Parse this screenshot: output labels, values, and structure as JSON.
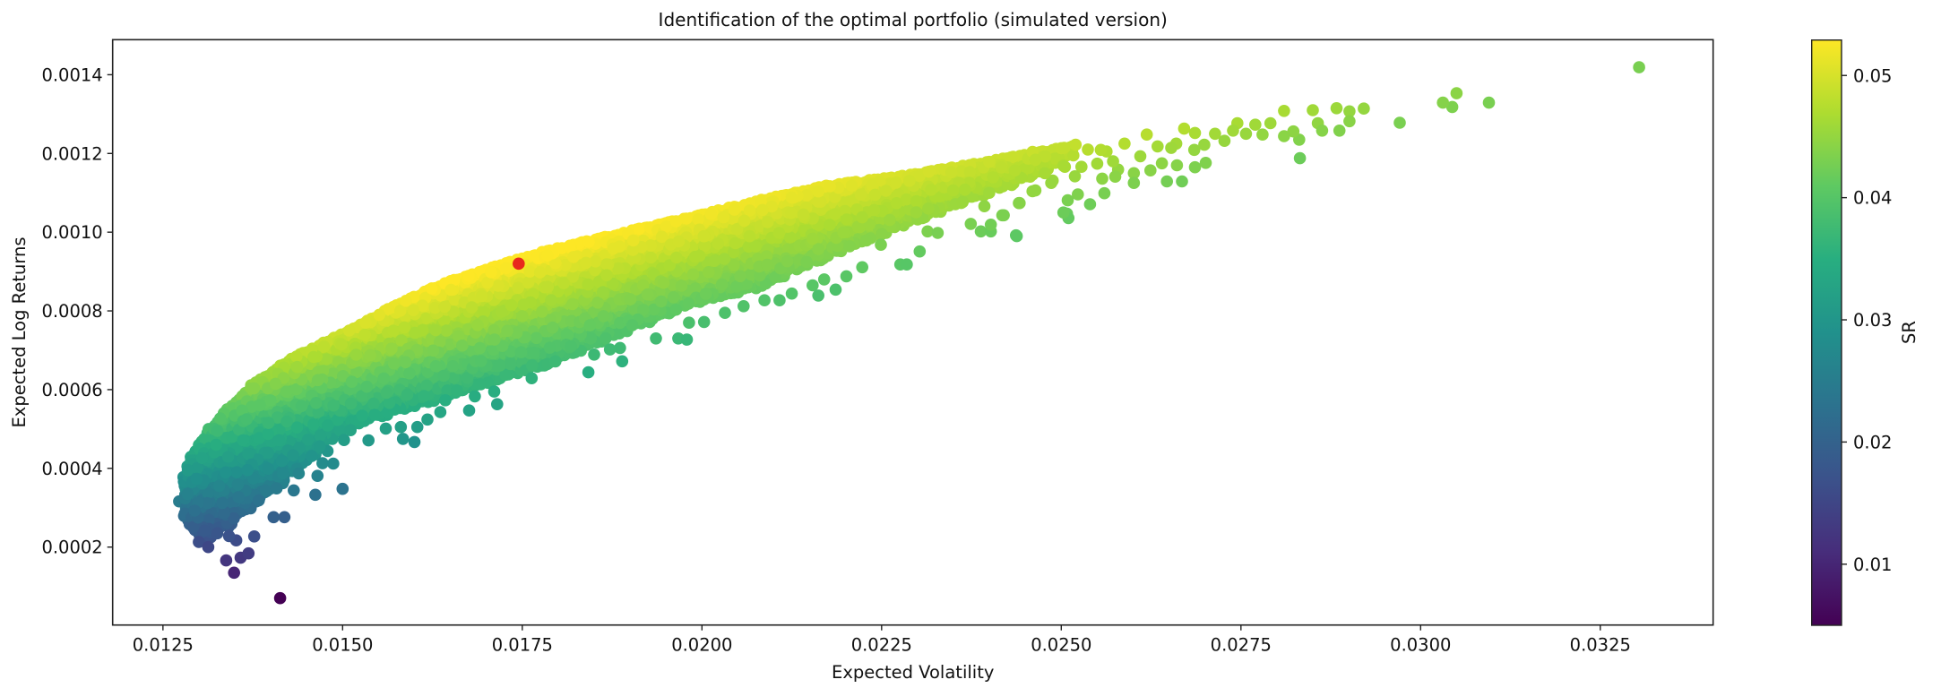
{
  "chart_data": {
    "type": "scatter",
    "title": "Identification of the optimal portfolio (simulated version)",
    "xlabel": "Expected Volatility",
    "ylabel": "Expected Log Returns",
    "xlim": [
      0.0118,
      0.03407
    ],
    "ylim": [
      2e-06,
      0.001489
    ],
    "xticks": [
      0.0125,
      0.015,
      0.0175,
      0.02,
      0.0225,
      0.025,
      0.0275,
      0.03,
      0.0325
    ],
    "xtick_labels": [
      "0.0125",
      "0.0150",
      "0.0175",
      "0.0200",
      "0.0225",
      "0.0250",
      "0.0275",
      "0.0300",
      "0.0325"
    ],
    "yticks": [
      0.0002,
      0.0004,
      0.0006,
      0.0008,
      0.001,
      0.0012,
      0.0014
    ],
    "ytick_labels": [
      "0.0002",
      "0.0004",
      "0.0006",
      "0.0008",
      "0.0010",
      "0.0012",
      "0.0014"
    ],
    "grid": false,
    "color_by": "SR",
    "colormap": "viridis",
    "colorbar": {
      "label": "SR",
      "range": [
        0.005,
        0.0529
      ],
      "ticks": [
        0.01,
        0.02,
        0.03,
        0.04,
        0.05
      ],
      "tick_labels": [
        "0.01",
        "0.02",
        "0.03",
        "0.04",
        "0.05"
      ]
    },
    "dense_cloud": {
      "vol": [
        0.01275,
        0.0128,
        0.0129,
        0.0131,
        0.0134,
        0.0138,
        0.0144,
        0.015,
        0.0157,
        0.0164,
        0.0171,
        0.0178,
        0.0187,
        0.0199,
        0.0208,
        0.0218,
        0.0227,
        0.0237,
        0.0246,
        0.0252
      ],
      "upper": [
        0.00032,
        0.00038,
        0.00043,
        0.00049,
        0.00055,
        0.00062,
        0.00069,
        0.00074,
        0.00081,
        0.00087,
        0.00091,
        0.00095,
        0.00099,
        0.00104,
        0.00108,
        0.00112,
        0.00114,
        0.00117,
        0.0012,
        0.00122
      ],
      "lower": [
        0.00031,
        0.00027,
        0.00024,
        0.00022,
        0.00025,
        0.00031,
        0.0004,
        0.0005,
        0.00054,
        0.00058,
        0.00062,
        0.00066,
        0.00073,
        0.00082,
        0.00086,
        0.00094,
        0.00101,
        0.00108,
        0.00114,
        0.0012
      ]
    },
    "points": [
      [
        0.01413,
        7.03e-05
      ],
      [
        0.01349,
        0.000135
      ],
      [
        0.01338,
        0.000166
      ],
      [
        0.01358,
        0.000173
      ],
      [
        0.01369,
        0.000184
      ],
      [
        0.01377,
        0.000227
      ],
      [
        0.01352,
        0.000217
      ],
      [
        0.01342,
        0.000228
      ],
      [
        0.013,
        0.000213
      ],
      [
        0.01313,
        0.0002
      ],
      [
        0.01404,
        0.000276
      ],
      [
        0.01419,
        0.000276
      ],
      [
        0.01462,
        0.000333
      ],
      [
        0.015,
        0.000348
      ],
      [
        0.01432,
        0.000344
      ],
      [
        0.01408,
        0.000349
      ],
      [
        0.01417,
        0.000387
      ],
      [
        0.01439,
        0.000387
      ],
      [
        0.01465,
        0.000381
      ],
      [
        0.01472,
        0.000413
      ],
      [
        0.01487,
        0.000412
      ],
      [
        0.01479,
        0.000444
      ],
      [
        0.01468,
        0.000456
      ],
      [
        0.01502,
        0.000472
      ],
      [
        0.01536,
        0.000471
      ],
      [
        0.01584,
        0.000475
      ],
      [
        0.016,
        0.000467
      ],
      [
        0.01604,
        0.000505
      ],
      [
        0.01581,
        0.000505
      ],
      [
        0.0156,
        0.000501
      ],
      [
        0.01618,
        0.000524
      ],
      [
        0.01636,
        0.000543
      ],
      [
        0.01676,
        0.000547
      ],
      [
        0.01715,
        0.000563
      ],
      [
        0.01711,
        0.000595
      ],
      [
        0.01684,
        0.000583
      ],
      [
        0.01659,
        0.000598
      ],
      [
        0.01643,
        0.000573
      ],
      [
        0.01763,
        0.000629
      ],
      [
        0.01511,
        0.000497
      ],
      [
        0.01431,
        0.000433
      ],
      [
        0.01842,
        0.000644
      ],
      [
        0.01889,
        0.000672
      ],
      [
        0.01886,
        0.000706
      ],
      [
        0.0185,
        0.000689
      ],
      [
        0.01872,
        0.000702
      ],
      [
        0.01936,
        0.00073
      ],
      [
        0.01967,
        0.00073
      ],
      [
        0.01979,
        0.000727
      ],
      [
        0.01982,
        0.00077
      ],
      [
        0.02003,
        0.000772
      ],
      [
        0.02032,
        0.000795
      ],
      [
        0.02058,
        0.000812
      ],
      [
        0.02087,
        0.000827
      ],
      [
        0.02108,
        0.000827
      ],
      [
        0.02125,
        0.000844
      ],
      [
        0.02154,
        0.000865
      ],
      [
        0.02162,
        0.000839
      ],
      [
        0.02186,
        0.000854
      ],
      [
        0.0217,
        0.00088
      ],
      [
        0.02201,
        0.000888
      ],
      [
        0.02223,
        0.000911
      ],
      [
        0.02276,
        0.000918
      ],
      [
        0.02285,
        0.000918
      ],
      [
        0.02303,
        0.000951
      ],
      [
        0.02249,
        0.000968
      ],
      [
        0.02314,
        0.001002
      ],
      [
        0.02328,
        0.000998
      ],
      [
        0.02374,
        0.001021
      ],
      [
        0.02388,
        0.001002
      ],
      [
        0.02402,
        0.001002
      ],
      [
        0.0242,
        0.001043
      ],
      [
        0.02438,
        0.00099
      ],
      [
        0.02393,
        0.001066
      ],
      [
        0.02366,
        0.001108
      ],
      [
        0.0246,
        0.001104
      ],
      [
        0.02441,
        0.001074
      ],
      [
        0.02508,
        0.001047
      ],
      [
        0.02503,
        0.001169
      ],
      [
        0.02488,
        0.001131
      ],
      [
        0.03095,
        0.001329
      ],
      [
        0.0305,
        0.001353
      ],
      [
        0.03044,
        0.001318
      ],
      [
        0.03031,
        0.001329
      ],
      [
        0.02971,
        0.001278
      ],
      [
        0.02921,
        0.001314
      ],
      [
        0.02901,
        0.001307
      ],
      [
        0.02901,
        0.001282
      ],
      [
        0.02883,
        0.001315
      ],
      [
        0.02887,
        0.001258
      ],
      [
        0.0285,
        0.00131
      ],
      [
        0.02857,
        0.001277
      ],
      [
        0.02863,
        0.001258
      ],
      [
        0.02832,
        0.001188
      ],
      [
        0.02831,
        0.001235
      ],
      [
        0.02823,
        0.001256
      ],
      [
        0.0281,
        0.001308
      ],
      [
        0.0281,
        0.001244
      ],
      [
        0.02791,
        0.001277
      ],
      [
        0.0278,
        0.001248
      ],
      [
        0.0277,
        0.001273
      ],
      [
        0.02757,
        0.00125
      ],
      [
        0.02745,
        0.001277
      ],
      [
        0.02739,
        0.001258
      ],
      [
        0.02727,
        0.001232
      ],
      [
        0.02714,
        0.00125
      ],
      [
        0.02699,
        0.001222
      ],
      [
        0.02701,
        0.001176
      ],
      [
        0.02686,
        0.001165
      ],
      [
        0.02685,
        0.001209
      ],
      [
        0.02671,
        0.001263
      ],
      [
        0.02686,
        0.001252
      ],
      [
        0.02668,
        0.001129
      ],
      [
        0.02647,
        0.001129
      ],
      [
        0.02661,
        0.00117
      ],
      [
        0.0264,
        0.001175
      ],
      [
        0.0266,
        0.001225
      ],
      [
        0.02653,
        0.001214
      ],
      [
        0.02634,
        0.001218
      ],
      [
        0.02624,
        0.001157
      ],
      [
        0.02619,
        0.001248
      ],
      [
        0.0261,
        0.001193
      ],
      [
        0.02601,
        0.00115
      ],
      [
        0.02601,
        0.001125
      ],
      [
        0.02588,
        0.001225
      ],
      [
        0.02579,
        0.001159
      ],
      [
        0.02575,
        0.001141
      ],
      [
        0.02572,
        0.00118
      ],
      [
        0.0256,
        0.001099
      ],
      [
        0.02557,
        0.001136
      ],
      [
        0.0255,
        0.001174
      ],
      [
        0.02563,
        0.001205
      ],
      [
        0.02555,
        0.001209
      ],
      [
        0.0254,
        0.001071
      ],
      [
        0.02537,
        0.00121
      ],
      [
        0.02528,
        0.001166
      ],
      [
        0.0252,
        0.001222
      ],
      [
        0.02523,
        0.001096
      ],
      [
        0.02519,
        0.001142
      ],
      [
        0.02509,
        0.001081
      ],
      [
        0.02505,
        0.001166
      ],
      [
        0.0251,
        0.001036
      ],
      [
        0.02503,
        0.00105
      ],
      [
        0.02464,
        0.001106
      ],
      [
        0.02437,
        0.000992
      ],
      [
        0.02418,
        0.001043
      ],
      [
        0.0246,
        0.001204
      ],
      [
        0.02464,
        0.001184
      ],
      [
        0.02486,
        0.001125
      ],
      [
        0.02477,
        0.00115
      ],
      [
        0.02442,
        0.001074
      ],
      [
        0.02402,
        0.001019
      ],
      [
        0.03304,
        0.001419
      ]
    ],
    "optimal_point": {
      "vol": 0.01745,
      "ret": 0.00092,
      "color": "#e8291c"
    }
  }
}
